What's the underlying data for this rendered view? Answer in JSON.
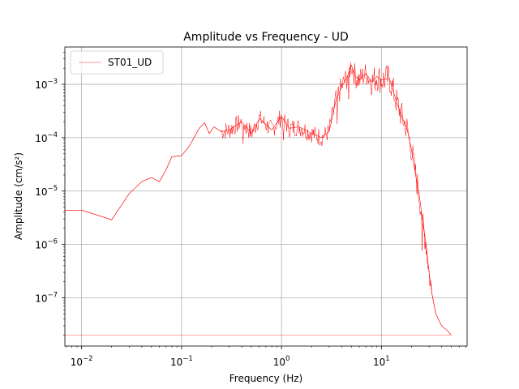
{
  "chart_data": {
    "type": "line",
    "title": "Amplitude vs Frequency - UD",
    "xlabel": "Frequency (Hz)",
    "ylabel": "Amplitude (cm/s²)",
    "xscale": "log",
    "yscale": "log",
    "xlim": [
      0.0068,
      72
    ],
    "ylim": [
      1.25e-08,
      0.005
    ],
    "grid": true,
    "legend": "top-left",
    "x_ticks": [
      {
        "value": 0.01,
        "mantissa": "10",
        "exp": "−2"
      },
      {
        "value": 0.1,
        "mantissa": "10",
        "exp": "−1"
      },
      {
        "value": 1,
        "mantissa": "10",
        "exp": "0"
      },
      {
        "value": 10,
        "mantissa": "10",
        "exp": "1"
      }
    ],
    "y_ticks": [
      {
        "value": 1e-07,
        "mantissa": "10",
        "exp": "−7"
      },
      {
        "value": 1e-06,
        "mantissa": "10",
        "exp": "−6"
      },
      {
        "value": 1e-05,
        "mantissa": "10",
        "exp": "−5"
      },
      {
        "value": 0.0001,
        "mantissa": "10",
        "exp": "−4"
      },
      {
        "value": 0.001,
        "mantissa": "10",
        "exp": "−3"
      }
    ],
    "series": [
      {
        "name": "ST01_UD",
        "color": "#ff0000",
        "x": [
          0.0068,
          0.01,
          0.02,
          0.03,
          0.04,
          0.05,
          0.06,
          0.07,
          0.08,
          0.1,
          0.12,
          0.15,
          0.17,
          0.19,
          0.21,
          0.25,
          0.3,
          0.4,
          0.5,
          0.6,
          0.8,
          1.0,
          1.2,
          1.5,
          2.0,
          2.5,
          3.0,
          3.5,
          4.0,
          4.5,
          5.0,
          5.5,
          6.0,
          7.0,
          8.0,
          9.0,
          10,
          12,
          14,
          16,
          18,
          20,
          22,
          24,
          26,
          28,
          30,
          32,
          35,
          40,
          45,
          50
        ],
        "y": [
          4.4e-06,
          4.4e-06,
          2.9e-06,
          9e-06,
          1.5e-05,
          1.8e-05,
          1.5e-05,
          2.5e-05,
          4.4e-05,
          4.6e-05,
          7e-05,
          0.00015,
          0.00019,
          0.00012,
          0.00016,
          0.00013,
          0.00014,
          0.0002,
          0.00012,
          0.00023,
          0.00014,
          0.00025,
          0.00015,
          0.00016,
          0.00012,
          0.0001,
          0.00013,
          0.0005,
          0.0009,
          0.0013,
          0.0023,
          0.0014,
          0.0012,
          0.0016,
          0.0011,
          0.0014,
          0.0012,
          0.0013,
          0.0005,
          0.00025,
          0.00015,
          6e-05,
          2e-05,
          8e-06,
          2.5e-06,
          1e-06,
          3e-07,
          1.2e-07,
          5e-08,
          3e-08,
          2.5e-08,
          2e-08
        ],
        "baseline": 2e-08
      }
    ]
  }
}
